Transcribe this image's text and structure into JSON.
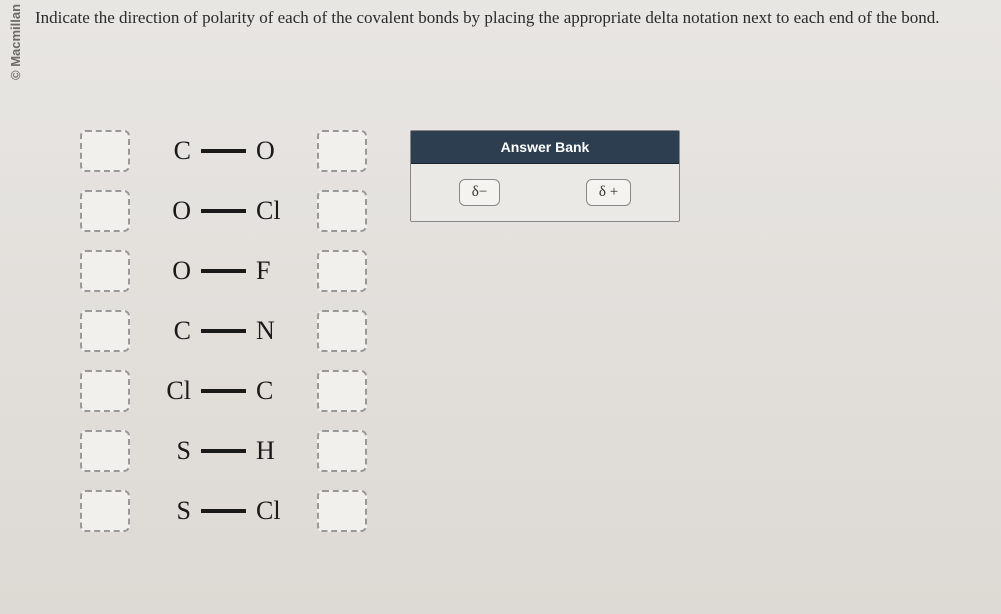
{
  "copyright": "© Macmillan Learning",
  "question": "Indicate the direction of polarity of each of the covalent bonds by placing the appropriate delta notation next to each end of the bond.",
  "bonds": [
    {
      "left": "C",
      "right": "O"
    },
    {
      "left": "O",
      "right": "Cl"
    },
    {
      "left": "O",
      "right": "F"
    },
    {
      "left": "C",
      "right": "N"
    },
    {
      "left": "Cl",
      "right": "C"
    },
    {
      "left": "S",
      "right": "H"
    },
    {
      "left": "S",
      "right": "Cl"
    }
  ],
  "answer_bank": {
    "title": "Answer Bank",
    "options": [
      "δ−",
      "δ +"
    ]
  },
  "styling": {
    "background_gradient_top": "#e8e6e3",
    "background_gradient_bottom": "#ddd9d4",
    "header_bg": "#2c3e50",
    "header_text": "#ffffff",
    "drop_border": "#999999",
    "bond_text_color": "#1a1a1a",
    "question_fontsize": 17,
    "bond_fontsize": 26,
    "chip_fontsize": 15
  }
}
